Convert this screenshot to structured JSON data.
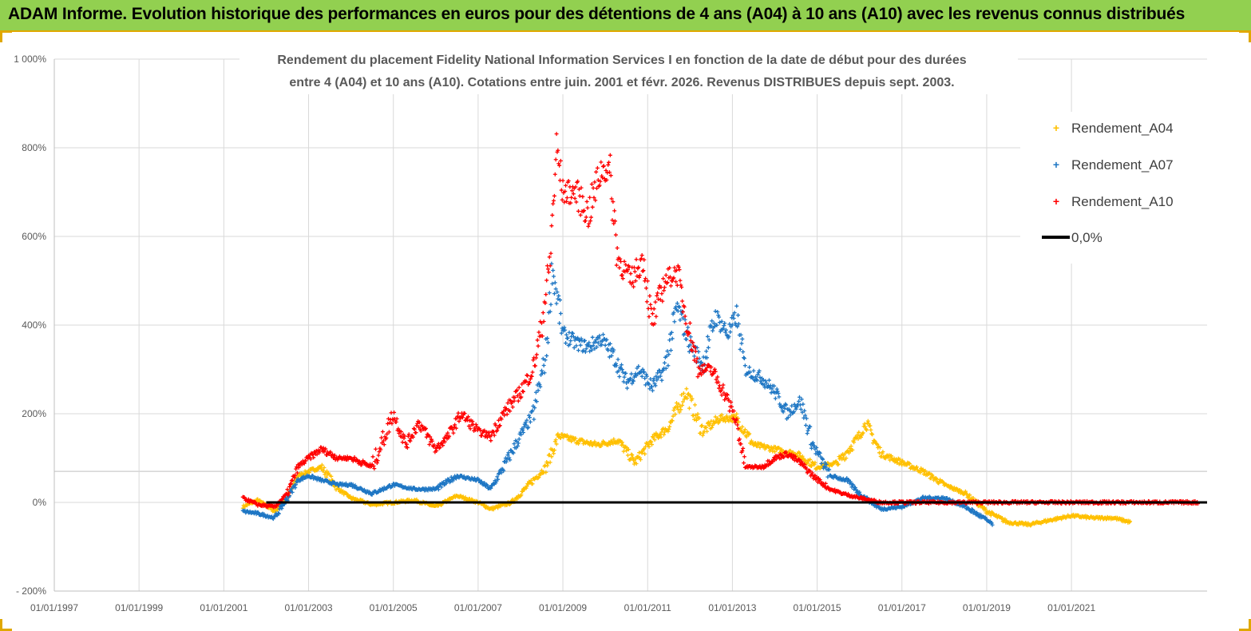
{
  "header": {
    "title": "ADAM Informe. Evolution historique des performances en euros pour des détentions de 4 ans (A04) à 10 ans (A10) avec les revenus connus distribués"
  },
  "chart_data": {
    "type": "scatter",
    "title_line1": "Rendement du placement Fidelity National Information Services I en fonction de la date de début pour des durées",
    "title_line2": "entre 4 (A04) et 10 ans (A10).  Cotations entre juin. 2001 et févr. 2026. Revenus DISTRIBUES depuis sept. 2003.",
    "xlabel": "",
    "ylabel": "",
    "xlim": [
      1997.0,
      2024.2
    ],
    "ylim": [
      -200,
      1000
    ],
    "y_ticks": [
      -200,
      0,
      200,
      400,
      600,
      800,
      1000
    ],
    "y_tick_labels": [
      "- 200%",
      "0%",
      "200%",
      "400%",
      "600%",
      "800%",
      "1 000%"
    ],
    "x_ticks": [
      1997,
      1999,
      2001,
      2003,
      2005,
      2007,
      2009,
      2011,
      2013,
      2015,
      2017,
      2019,
      2021
    ],
    "x_tick_labels": [
      "01/01/1997",
      "01/01/1999",
      "01/01/2001",
      "01/01/2003",
      "01/01/2005",
      "01/01/2007",
      "01/01/2009",
      "01/01/2011",
      "01/01/2013",
      "01/01/2015",
      "01/01/2017",
      "01/01/2019",
      "01/01/2021"
    ],
    "reference_gridline_y": 70,
    "legend_position": "right",
    "colors": {
      "Rendement_A04": "#ffc000",
      "Rendement_A07": "#1f77c4",
      "Rendement_A10": "#ff0000",
      "zero_line": "#000000"
    },
    "series": [
      {
        "name": "Rendement_A04",
        "x": [
          2001.45,
          2001.8,
          2002.2,
          2002.5,
          2002.75,
          2003.0,
          2003.3,
          2003.7,
          2004.0,
          2004.5,
          2005.0,
          2005.5,
          2006.0,
          2006.5,
          2007.0,
          2007.3,
          2007.8,
          2008.2,
          2008.6,
          2008.9,
          2009.3,
          2009.8,
          2010.3,
          2010.7,
          2011.1,
          2011.5,
          2011.9,
          2012.3,
          2012.7,
          2013.1,
          2013.5,
          2014.0,
          2014.5,
          2015.0,
          2015.5,
          2016.0,
          2016.15,
          2016.5,
          2017.0,
          2017.5,
          2018.0,
          2018.5,
          2019.0,
          2019.5,
          2020.0,
          2020.5,
          2021.0,
          2021.5,
          2022.0,
          2022.4
        ],
        "y": [
          -10,
          5,
          -20,
          10,
          60,
          70,
          80,
          30,
          10,
          -5,
          0,
          5,
          -10,
          15,
          0,
          -15,
          0,
          40,
          80,
          150,
          140,
          130,
          140,
          90,
          140,
          170,
          250,
          160,
          190,
          190,
          130,
          120,
          110,
          80,
          90,
          150,
          180,
          110,
          90,
          70,
          40,
          20,
          -20,
          -45,
          -50,
          -40,
          -30,
          -35,
          -35,
          -45
        ]
      },
      {
        "name": "Rendement_A07",
        "x": [
          2001.45,
          2001.8,
          2002.2,
          2002.5,
          2002.75,
          2003.0,
          2003.3,
          2003.7,
          2004.0,
          2004.5,
          2005.0,
          2005.5,
          2006.0,
          2006.5,
          2007.0,
          2007.3,
          2007.6,
          2008.0,
          2008.3,
          2008.6,
          2008.75,
          2009.0,
          2009.3,
          2009.6,
          2009.9,
          2010.2,
          2010.5,
          2010.8,
          2011.1,
          2011.4,
          2011.7,
          2012.0,
          2012.3,
          2012.6,
          2012.9,
          2013.1,
          2013.3,
          2013.7,
          2014.0,
          2014.3,
          2014.6,
          2014.9,
          2015.3,
          2015.7,
          2016.0,
          2016.5,
          2017.0,
          2017.5,
          2018.0,
          2018.5,
          2019.0,
          2019.15
        ],
        "y": [
          -20,
          -25,
          -35,
          10,
          50,
          60,
          50,
          40,
          40,
          20,
          40,
          30,
          30,
          60,
          50,
          30,
          80,
          150,
          200,
          330,
          530,
          380,
          360,
          350,
          370,
          330,
          270,
          300,
          260,
          300,
          440,
          360,
          310,
          420,
          380,
          420,
          300,
          280,
          250,
          200,
          230,
          130,
          60,
          50,
          20,
          -15,
          -10,
          10,
          10,
          -10,
          -40,
          -50
        ]
      },
      {
        "name": "Rendement_A10",
        "x": [
          2001.45,
          2001.8,
          2002.2,
          2002.5,
          2002.75,
          2003.0,
          2003.3,
          2003.7,
          2004.0,
          2004.5,
          2005.0,
          2005.3,
          2005.6,
          2006.0,
          2006.3,
          2006.6,
          2007.0,
          2007.3,
          2007.6,
          2008.0,
          2008.3,
          2008.5,
          2008.7,
          2008.85,
          2009.0,
          2009.3,
          2009.6,
          2009.9,
          2010.1,
          2010.3,
          2010.6,
          2010.9,
          2011.1,
          2011.4,
          2011.7,
          2011.9,
          2012.2,
          2012.5,
          2012.8,
          2013.1,
          2013.3,
          2013.7,
          2014.0,
          2014.3,
          2014.6,
          2014.9,
          2015.3,
          2015.6,
          2016.0,
          2016.5,
          2017.0,
          2018.0,
          2019.0,
          2020.0,
          2021.0,
          2022.0,
          2023.0,
          2024.0
        ],
        "y": [
          10,
          -5,
          -10,
          20,
          80,
          100,
          120,
          100,
          100,
          80,
          200,
          130,
          180,
          120,
          150,
          200,
          160,
          150,
          200,
          250,
          300,
          400,
          550,
          800,
          700,
          700,
          650,
          750,
          750,
          550,
          500,
          550,
          400,
          500,
          520,
          420,
          300,
          300,
          250,
          180,
          80,
          80,
          100,
          110,
          90,
          60,
          30,
          20,
          10,
          0,
          0,
          0,
          0,
          0,
          0,
          0,
          0,
          0
        ]
      }
    ],
    "reference_line": {
      "name": "0,0%",
      "x": [
        2002.0,
        2024.2
      ],
      "y": [
        0,
        0
      ]
    }
  }
}
